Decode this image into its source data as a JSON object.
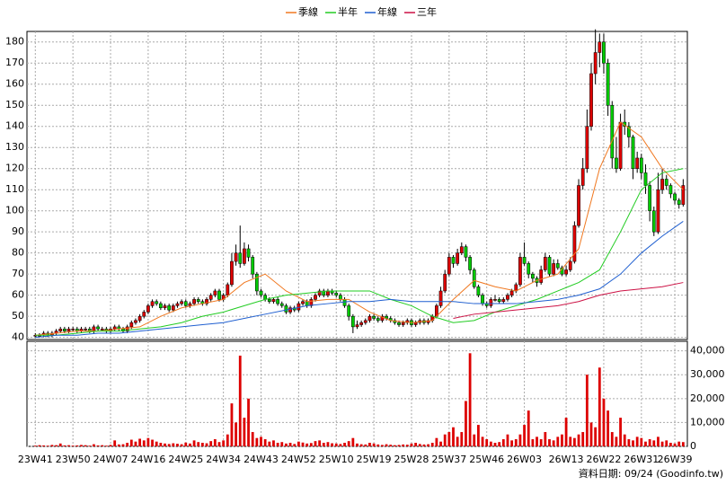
{
  "chart_data": {
    "type": "candlestick",
    "legend": [
      "季線",
      "半年",
      "年線",
      "三年"
    ],
    "footer": "資料日期: 09/24  (Goodinfo.tw)",
    "up_color": "#dd0000",
    "down_color": "#00cc00",
    "volume_color": "#dd0000",
    "grid": true,
    "xlim": [
      -2,
      156
    ],
    "ylim": [
      39,
      185
    ],
    "yticks": [
      40,
      50,
      60,
      70,
      80,
      90,
      100,
      110,
      120,
      130,
      140,
      150,
      160,
      170,
      180
    ],
    "y2lim": [
      0,
      44000
    ],
    "y2ticks": [
      {
        "value": 0,
        "label": "0"
      },
      {
        "value": 10000,
        "label": "10,000"
      },
      {
        "value": 20000,
        "label": "20,000"
      },
      {
        "value": 30000,
        "label": "30,000"
      },
      {
        "value": 40000,
        "label": "40,000"
      }
    ],
    "xticks": [
      {
        "value": 0,
        "label": "23W41"
      },
      {
        "value": 9,
        "label": "23W50"
      },
      {
        "value": 18,
        "label": "24W07"
      },
      {
        "value": 27,
        "label": "24W16"
      },
      {
        "value": 36,
        "label": "24W25"
      },
      {
        "value": 45,
        "label": "24W34"
      },
      {
        "value": 54,
        "label": "24W43"
      },
      {
        "value": 63,
        "label": "24W52"
      },
      {
        "value": 72,
        "label": "25W10"
      },
      {
        "value": 81,
        "label": "25W19"
      },
      {
        "value": 90,
        "label": "25W28"
      },
      {
        "value": 99,
        "label": "25W37"
      },
      {
        "value": 108,
        "label": "25W46"
      },
      {
        "value": 117,
        "label": "26W03"
      },
      {
        "value": 127,
        "label": "26W13"
      },
      {
        "value": 136,
        "label": "26W22"
      },
      {
        "value": 145,
        "label": "26W31"
      },
      {
        "value": 153,
        "label": "26W39"
      }
    ],
    "candles": [
      [
        41,
        42,
        40,
        41
      ],
      [
        41,
        42,
        40,
        41
      ],
      [
        41,
        43,
        40,
        42
      ],
      [
        42,
        43,
        40,
        41
      ],
      [
        41,
        43,
        40,
        42
      ],
      [
        42,
        44,
        41,
        43
      ],
      [
        43,
        45,
        42,
        44
      ],
      [
        44,
        45,
        42,
        43
      ],
      [
        43,
        45,
        42,
        44
      ],
      [
        44,
        45,
        43,
        44
      ],
      [
        44,
        45,
        42,
        43
      ],
      [
        43,
        45,
        42,
        44
      ],
      [
        44,
        45,
        43,
        44
      ],
      [
        44,
        45,
        42,
        43
      ],
      [
        43,
        46,
        42,
        45
      ],
      [
        45,
        46,
        43,
        44
      ],
      [
        44,
        45,
        43,
        44
      ],
      [
        44,
        45,
        42,
        43
      ],
      [
        43,
        45,
        42,
        44
      ],
      [
        44,
        46,
        43,
        45
      ],
      [
        45,
        46,
        43,
        44
      ],
      [
        44,
        45,
        42,
        43
      ],
      [
        43,
        46,
        42,
        45
      ],
      [
        45,
        48,
        44,
        47
      ],
      [
        47,
        49,
        46,
        48
      ],
      [
        48,
        51,
        47,
        50
      ],
      [
        50,
        53,
        49,
        52
      ],
      [
        52,
        56,
        51,
        55
      ],
      [
        55,
        58,
        54,
        57
      ],
      [
        57,
        58,
        55,
        56
      ],
      [
        56,
        57,
        53,
        54
      ],
      [
        54,
        56,
        53,
        55
      ],
      [
        55,
        56,
        52,
        53
      ],
      [
        53,
        56,
        52,
        55
      ],
      [
        55,
        57,
        54,
        56
      ],
      [
        56,
        58,
        55,
        57
      ],
      [
        57,
        58,
        54,
        55
      ],
      [
        55,
        57,
        54,
        56
      ],
      [
        56,
        59,
        55,
        58
      ],
      [
        58,
        59,
        56,
        57
      ],
      [
        57,
        58,
        55,
        56
      ],
      [
        56,
        59,
        55,
        58
      ],
      [
        58,
        61,
        57,
        60
      ],
      [
        60,
        63,
        59,
        62
      ],
      [
        62,
        63,
        57,
        58
      ],
      [
        58,
        61,
        57,
        60
      ],
      [
        60,
        66,
        59,
        65
      ],
      [
        65,
        80,
        64,
        76
      ],
      [
        76,
        84,
        74,
        80
      ],
      [
        80,
        93,
        73,
        75
      ],
      [
        75,
        85,
        74,
        82
      ],
      [
        82,
        84,
        76,
        78
      ],
      [
        78,
        79,
        68,
        70
      ],
      [
        70,
        71,
        60,
        62
      ],
      [
        62,
        63,
        59,
        60
      ],
      [
        60,
        61,
        57,
        58
      ],
      [
        58,
        59,
        56,
        57
      ],
      [
        57,
        59,
        56,
        58
      ],
      [
        58,
        59,
        55,
        56
      ],
      [
        56,
        57,
        54,
        55
      ],
      [
        55,
        56,
        51,
        52
      ],
      [
        52,
        55,
        51,
        54
      ],
      [
        54,
        55,
        52,
        53
      ],
      [
        53,
        57,
        52,
        56
      ],
      [
        56,
        58,
        55,
        57
      ],
      [
        57,
        58,
        54,
        55
      ],
      [
        55,
        59,
        54,
        58
      ],
      [
        58,
        61,
        57,
        60
      ],
      [
        60,
        63,
        59,
        62
      ],
      [
        62,
        63,
        59,
        60
      ],
      [
        60,
        63,
        59,
        62
      ],
      [
        62,
        63,
        60,
        61
      ],
      [
        61,
        62,
        59,
        60
      ],
      [
        60,
        61,
        57,
        58
      ],
      [
        58,
        59,
        54,
        55
      ],
      [
        55,
        56,
        48,
        50
      ],
      [
        50,
        51,
        42,
        45
      ],
      [
        45,
        48,
        44,
        46
      ],
      [
        46,
        48,
        45,
        47
      ],
      [
        47,
        49,
        46,
        48
      ],
      [
        48,
        51,
        47,
        50
      ],
      [
        50,
        51,
        48,
        49
      ],
      [
        49,
        50,
        47,
        48
      ],
      [
        48,
        51,
        47,
        50
      ],
      [
        50,
        51,
        48,
        49
      ],
      [
        49,
        50,
        47,
        48
      ],
      [
        48,
        49,
        46,
        47
      ],
      [
        47,
        48,
        45,
        46
      ],
      [
        46,
        48,
        45,
        47
      ],
      [
        47,
        49,
        46,
        48
      ],
      [
        48,
        49,
        45,
        46
      ],
      [
        46,
        48,
        45,
        47
      ],
      [
        47,
        49,
        46,
        48
      ],
      [
        48,
        49,
        46,
        47
      ],
      [
        47,
        49,
        46,
        48
      ],
      [
        48,
        51,
        47,
        50
      ],
      [
        50,
        56,
        49,
        55
      ],
      [
        55,
        64,
        54,
        62
      ],
      [
        62,
        72,
        61,
        70
      ],
      [
        70,
        80,
        69,
        78
      ],
      [
        78,
        79,
        73,
        75
      ],
      [
        75,
        82,
        74,
        80
      ],
      [
        80,
        85,
        79,
        83
      ],
      [
        83,
        84,
        76,
        78
      ],
      [
        78,
        79,
        70,
        72
      ],
      [
        72,
        73,
        63,
        64
      ],
      [
        64,
        65,
        59,
        60
      ],
      [
        60,
        61,
        55,
        56
      ],
      [
        56,
        57,
        54,
        55
      ],
      [
        55,
        59,
        54,
        58
      ],
      [
        58,
        60,
        57,
        58
      ],
      [
        58,
        59,
        56,
        57
      ],
      [
        57,
        59,
        56,
        58
      ],
      [
        58,
        61,
        57,
        60
      ],
      [
        60,
        63,
        59,
        62
      ],
      [
        62,
        66,
        61,
        65
      ],
      [
        65,
        80,
        64,
        78
      ],
      [
        78,
        85,
        74,
        75
      ],
      [
        75,
        76,
        68,
        70
      ],
      [
        70,
        71,
        66,
        68
      ],
      [
        68,
        69,
        64,
        66
      ],
      [
        66,
        74,
        65,
        72
      ],
      [
        72,
        80,
        71,
        78
      ],
      [
        78,
        79,
        69,
        70
      ],
      [
        70,
        77,
        69,
        75
      ],
      [
        75,
        77,
        72,
        73
      ],
      [
        73,
        74,
        69,
        70
      ],
      [
        70,
        74,
        69,
        72
      ],
      [
        72,
        78,
        71,
        76
      ],
      [
        76,
        95,
        75,
        93
      ],
      [
        93,
        115,
        92,
        112
      ],
      [
        112,
        125,
        110,
        120
      ],
      [
        120,
        148,
        118,
        140
      ],
      [
        140,
        170,
        138,
        165
      ],
      [
        165,
        186,
        160,
        175
      ],
      [
        175,
        184,
        168,
        180
      ],
      [
        180,
        184,
        165,
        170
      ],
      [
        170,
        172,
        145,
        150
      ],
      [
        150,
        152,
        120,
        125
      ],
      [
        125,
        135,
        118,
        120
      ],
      [
        120,
        146,
        119,
        142
      ],
      [
        142,
        148,
        136,
        140
      ],
      [
        140,
        142,
        130,
        135
      ],
      [
        135,
        136,
        115,
        120
      ],
      [
        120,
        128,
        118,
        125
      ],
      [
        125,
        127,
        115,
        118
      ],
      [
        118,
        122,
        108,
        112
      ],
      [
        112,
        114,
        95,
        100
      ],
      [
        100,
        102,
        88,
        90
      ],
      [
        90,
        118,
        89,
        110
      ],
      [
        110,
        120,
        108,
        115
      ],
      [
        115,
        117,
        110,
        112
      ],
      [
        112,
        113,
        106,
        108
      ],
      [
        108,
        109,
        103,
        105
      ],
      [
        105,
        106,
        101,
        103
      ],
      [
        103,
        115,
        102,
        112
      ]
    ],
    "volume": [
      300,
      500,
      400,
      300,
      600,
      500,
      1200,
      400,
      500,
      300,
      400,
      600,
      500,
      300,
      900,
      400,
      500,
      300,
      600,
      2500,
      800,
      900,
      1500,
      2800,
      2000,
      3200,
      2500,
      3500,
      2800,
      2000,
      1500,
      1200,
      1000,
      1300,
      1100,
      900,
      1600,
      1200,
      2500,
      1800,
      1500,
      1300,
      2200,
      3000,
      1800,
      2500,
      5000,
      18000,
      10000,
      38000,
      12000,
      20000,
      6000,
      3500,
      4000,
      3000,
      2000,
      2500,
      1500,
      1800,
      1200,
      1500,
      1000,
      2000,
      1600,
      1200,
      1400,
      2200,
      2500,
      1500,
      1800,
      1300,
      1200,
      1000,
      1500,
      2200,
      3500,
      1200,
      900,
      800,
      1500,
      1200,
      800,
      600,
      900,
      700,
      500,
      600,
      800,
      700,
      1200,
      1500,
      1000,
      800,
      900,
      1500,
      3500,
      2000,
      5000,
      6000,
      8000,
      4000,
      6000,
      19000,
      39000,
      5000,
      9000,
      4000,
      3000,
      2000,
      1500,
      1800,
      3000,
      5000,
      2500,
      3000,
      5000,
      9000,
      15000,
      3000,
      4000,
      3000,
      6000,
      3000,
      2500,
      4000,
      5000,
      12000,
      4000,
      3500,
      5000,
      6000,
      30000,
      10000,
      8000,
      33000,
      20000,
      15000,
      6000,
      4000,
      12000,
      5000,
      3000,
      2500,
      4000,
      3500,
      2000,
      3000,
      2500,
      4000,
      2000,
      2500,
      1500,
      1200,
      2000,
      1800
    ],
    "ma_x": [
      0,
      5,
      10,
      15,
      20,
      25,
      30,
      35,
      40,
      45,
      50,
      55,
      60,
      65,
      70,
      75,
      80,
      85,
      90,
      95,
      100,
      105,
      110,
      115,
      120,
      125,
      130,
      135,
      140,
      145,
      150,
      155
    ],
    "series": [
      {
        "name": "季線",
        "color": "#f07820",
        "values": [
          41,
          42,
          43,
          43,
          44,
          45,
          50,
          54,
          56,
          58,
          66,
          70,
          62,
          57,
          58,
          58,
          52,
          48,
          47,
          48,
          58,
          67,
          64,
          62,
          67,
          70,
          82,
          120,
          142,
          135,
          120,
          110
        ]
      },
      {
        "name": "半年",
        "color": "#22cc22",
        "values": [
          41,
          41,
          42,
          43,
          43,
          44,
          45,
          47,
          50,
          52,
          55,
          58,
          60,
          61,
          62,
          62,
          62,
          58,
          55,
          50,
          47,
          48,
          52,
          55,
          58,
          62,
          66,
          72,
          90,
          110,
          118,
          120
        ]
      },
      {
        "name": "年線",
        "color": "#1f5fd0",
        "values": [
          40,
          41,
          41,
          42,
          42,
          43,
          44,
          45,
          46,
          47,
          49,
          51,
          53,
          55,
          56,
          57,
          57,
          58,
          57,
          57,
          57,
          56,
          56,
          56,
          57,
          58,
          60,
          63,
          70,
          80,
          88,
          95
        ]
      },
      {
        "name": "三年",
        "color": "#cc1144",
        "values": [
          null,
          null,
          null,
          null,
          null,
          null,
          null,
          null,
          null,
          null,
          null,
          null,
          null,
          null,
          null,
          null,
          null,
          null,
          null,
          null,
          49,
          51,
          52,
          53,
          54,
          55,
          57,
          60,
          62,
          63,
          64,
          66
        ]
      }
    ]
  }
}
